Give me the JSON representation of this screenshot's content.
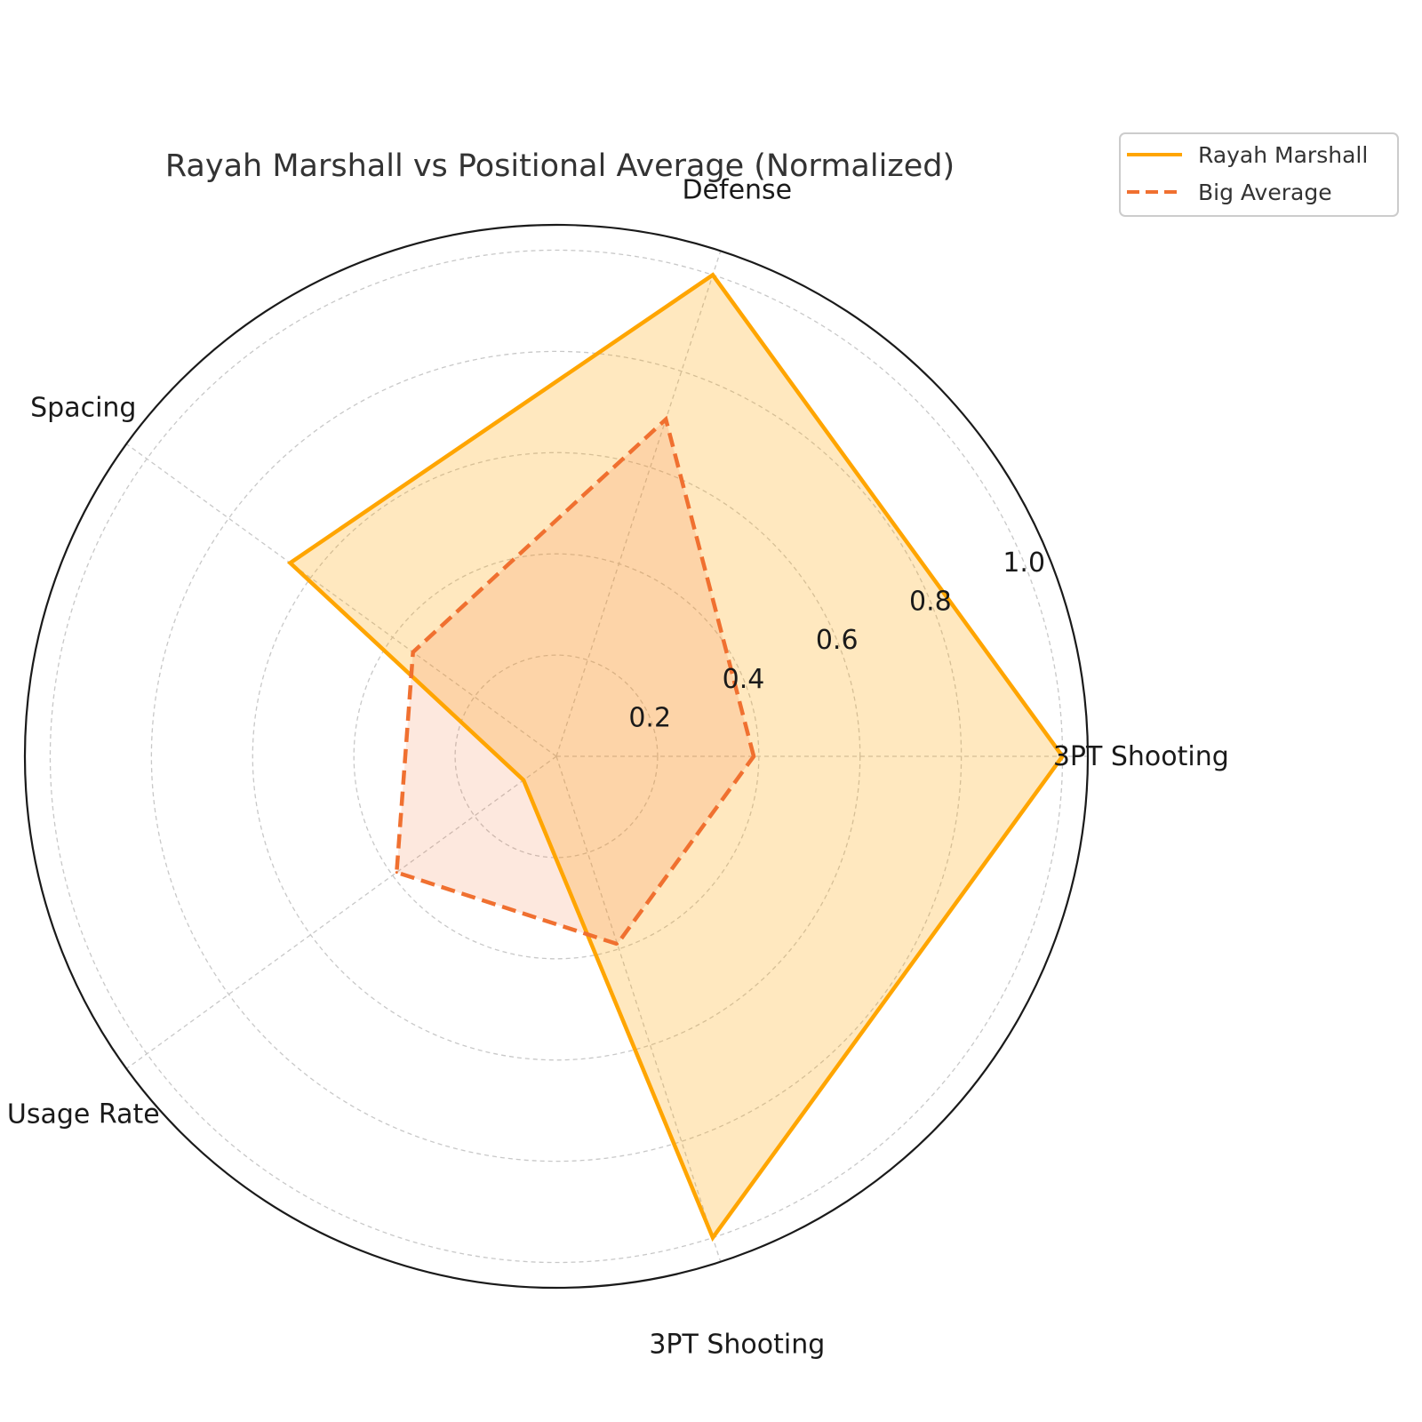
{
  "chart_data": {
    "type": "radar",
    "title": "Rayah Marshall vs Positional Average (Normalized)",
    "axes": [
      "3PT Shooting",
      "Defense",
      "Spacing",
      "Usage Rate",
      "3PT Shooting"
    ],
    "rlim": [
      0,
      1.05
    ],
    "rticks": [
      0.2,
      0.4,
      0.6,
      0.8,
      1.0
    ],
    "rtick_labels": [
      "0.2",
      "0.4",
      "0.6",
      "0.8",
      "1.0"
    ],
    "grid": true,
    "legend_position": "top-right",
    "series": [
      {
        "name": "Rayah Marshall",
        "values": [
          1.0,
          1.0,
          0.65,
          0.08,
          1.0
        ],
        "color": "#FFA500",
        "line_style": "solid",
        "fill_opacity": 0.25
      },
      {
        "name": "Big Average",
        "values": [
          0.39,
          0.7,
          0.35,
          0.39,
          0.39
        ],
        "color": "#F07030",
        "line_style": "dashed",
        "fill_opacity": 0.16
      }
    ]
  }
}
